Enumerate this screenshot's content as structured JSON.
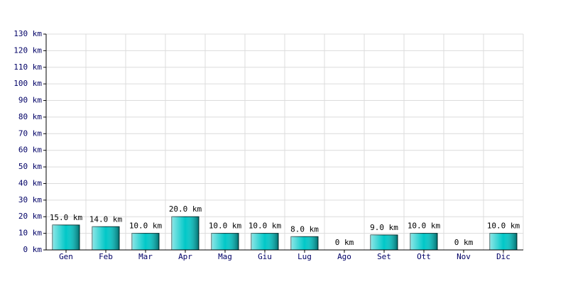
{
  "chart_data": {
    "type": "bar",
    "categories": [
      "Gen",
      "Feb",
      "Mar",
      "Apr",
      "Mag",
      "Giu",
      "Lug",
      "Ago",
      "Set",
      "Ott",
      "Nov",
      "Dic"
    ],
    "values": [
      15,
      14,
      10,
      20,
      10,
      10,
      8,
      0,
      9,
      10,
      0,
      10
    ],
    "value_labels": [
      "15.0 km",
      "14.0 km",
      "10.0 km",
      "20.0 km",
      "10.0 km",
      "10.0 km",
      "8.0 km",
      "0 km",
      "9.0 km",
      "10.0 km",
      "0 km",
      "10.0 km"
    ],
    "color": "#00c8c8",
    "ylim": [
      0,
      130
    ],
    "yticks": [
      {
        "value": 0,
        "label": "0 km"
      },
      {
        "value": 10,
        "label": "10 km"
      },
      {
        "value": 20,
        "label": "20 km"
      },
      {
        "value": 30,
        "label": "30 km"
      },
      {
        "value": 40,
        "label": "40 km"
      },
      {
        "value": 50,
        "label": "50 km"
      },
      {
        "value": 60,
        "label": "60 km"
      },
      {
        "value": 70,
        "label": "70 km"
      },
      {
        "value": 80,
        "label": "80 km"
      },
      {
        "value": 90,
        "label": "90 km"
      },
      {
        "value": 100,
        "label": "100 km"
      },
      {
        "value": 110,
        "label": "110 km"
      },
      {
        "value": 120,
        "label": "120 km"
      },
      {
        "value": 130,
        "label": "130 km"
      }
    ],
    "grid": true
  }
}
